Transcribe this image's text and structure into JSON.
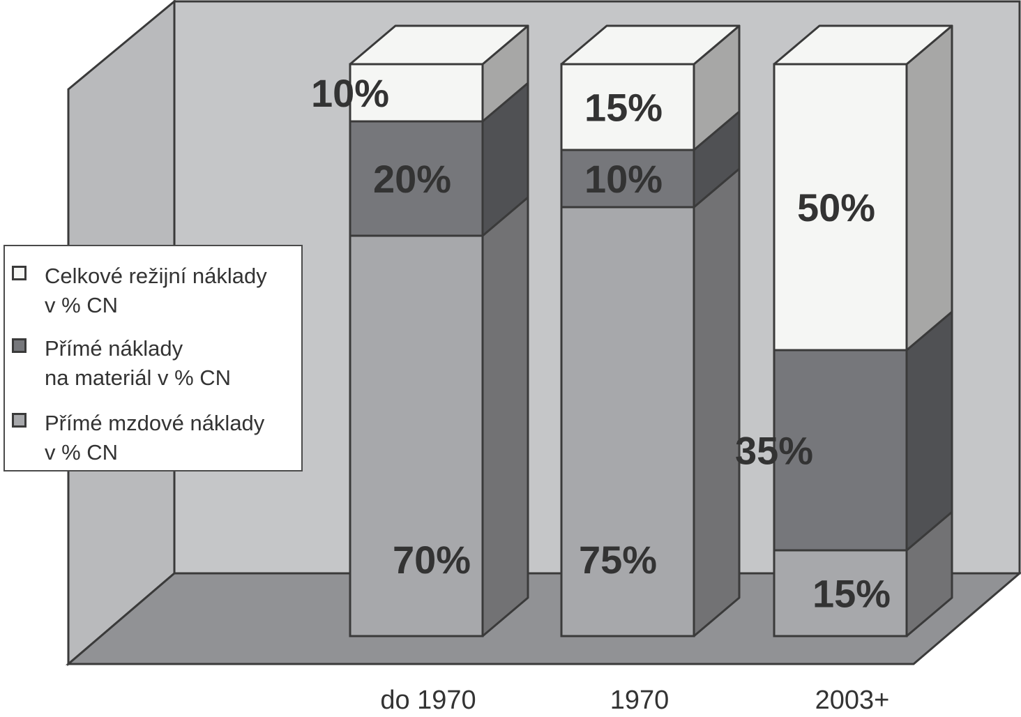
{
  "chart_data": {
    "type": "bar",
    "stacked": true,
    "three_d": true,
    "title": "",
    "xlabel": "",
    "ylabel": "",
    "ylim": [
      0,
      100
    ],
    "grid": false,
    "legend_position": "left",
    "categories": [
      "do 1970",
      "1970",
      "2003+"
    ],
    "series": [
      {
        "name": "Přímé mzdové náklady\nv % CN",
        "values": [
          70,
          75,
          15
        ],
        "labels": [
          "70%",
          "75%",
          "15%"
        ],
        "color": "#a7a8ab"
      },
      {
        "name": "Přímé náklady\nna materiál v % CN",
        "values": [
          20,
          10,
          35
        ],
        "labels": [
          "20%",
          "10%",
          "35%"
        ],
        "color": "#76777b"
      },
      {
        "name": "Celkové režijní náklady\nv % CN",
        "values": [
          10,
          15,
          50
        ],
        "labels": [
          "10%",
          "15%",
          "50%"
        ],
        "color": "#f5f6f4"
      }
    ]
  },
  "colors": {
    "back_wall": "#c5c6c8",
    "side_wall": "#b9babc",
    "floor": "#919295",
    "outline": "#3a3a3a",
    "label_text": "#333333"
  }
}
